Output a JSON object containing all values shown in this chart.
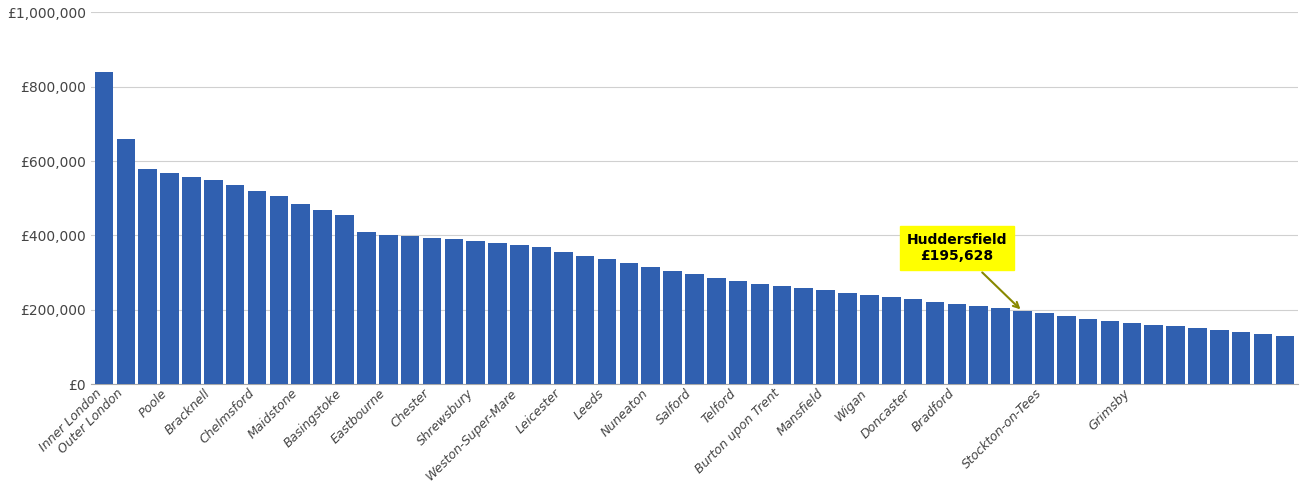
{
  "bar_color": "#3060b0",
  "annotation_bg": "#ffff00",
  "huddersfield_value": 195628,
  "ylim": [
    0,
    1000000
  ],
  "yticks": [
    0,
    200000,
    400000,
    600000,
    800000,
    1000000
  ],
  "ytick_labels": [
    "£0",
    "£200,000",
    "£400,000",
    "£600,000",
    "£800,000",
    "£1,000,000"
  ],
  "values": [
    840000,
    660000,
    578000,
    568000,
    556000,
    548000,
    536000,
    520000,
    505000,
    485000,
    468000,
    455000,
    408000,
    400000,
    398000,
    394000,
    390000,
    386000,
    380000,
    374000,
    368000,
    356000,
    345000,
    336000,
    325000,
    315000,
    305000,
    295000,
    285000,
    278000,
    270000,
    263000,
    258000,
    252000,
    246000,
    240000,
    234000,
    228000,
    222000,
    216000,
    210000,
    204000,
    195628,
    190000,
    183000,
    176000,
    170000,
    165000,
    160000,
    155000,
    150000,
    145000,
    140000,
    135000,
    130000
  ],
  "n_bars": 55,
  "label_indices": [
    0,
    1,
    3,
    5,
    7,
    9,
    11,
    13,
    15,
    17,
    19,
    21,
    23,
    25,
    27,
    29,
    31,
    33,
    35,
    37,
    39,
    43,
    47
  ],
  "label_names": [
    "Inner London",
    "Outer London",
    "Poole",
    "Bracknell",
    "Chelmsford",
    "Maidstone",
    "Basingstoke",
    "Eastbourne",
    "Chester",
    "Shrewsbury",
    "Weston-Super-Mare",
    "Leicester",
    "Leeds",
    "Nuneaton",
    "Salford",
    "Telford",
    "Burton upon Trent",
    "Mansfield",
    "Wigan",
    "Doncaster",
    "Bradford",
    "Stockton-on-Tees",
    "Grimsby"
  ],
  "huddersfield_idx": 42,
  "annotation_text": "Huddersfield\n£195,628"
}
